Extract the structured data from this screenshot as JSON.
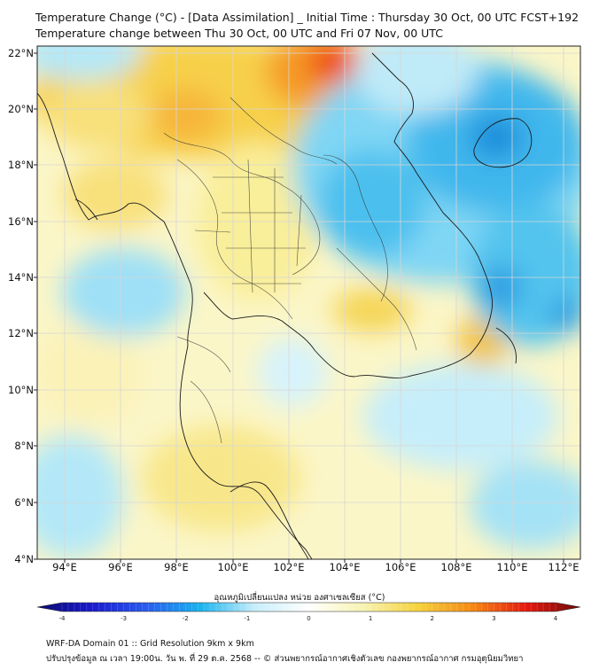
{
  "title_line1": "Temperature Change (°C) - [Data Assimilation] _ Initial Time : Thursday 30 Oct, 00 UTC FCST+192",
  "title_line2": "Temperature change between Thu 30 Oct, 00 UTC and Fri 07 Nov, 00 UTC",
  "lat_labels": [
    "22°N",
    "20°N",
    "18°N",
    "16°N",
    "14°N",
    "12°N",
    "10°N",
    "8°N",
    "6°N",
    "4°N"
  ],
  "lon_labels": [
    "94°E",
    "96°E",
    "98°E",
    "100°E",
    "102°E",
    "104°E",
    "106°E",
    "108°E",
    "110°E",
    "112°E"
  ],
  "colorbar": {
    "title": "อุณหภูมิเปลี่ยนแปลง หน่วย องศาเซลเซียส (°C)",
    "ticks": [
      "-4",
      "-3",
      "-2",
      "-1",
      "0",
      "1",
      "2",
      "3",
      "4"
    ],
    "min": -4,
    "max": 4,
    "colors": [
      "#0a0a6e",
      "#1a1acd",
      "#2a5cf0",
      "#19b4ee",
      "#c8eefa",
      "#ffffff",
      "#f8f3b2",
      "#f5d23e",
      "#f58a14",
      "#e61a0f",
      "#6e0a0a"
    ]
  },
  "footer_line1": "WRF-DA Domain 01 :: Grid Resolution 9km x 9km",
  "footer_line2": "ปรับปรุงข้อมูล ณ เวลา 19:00น. วัน พ. ที่ 29 ต.ค. 2568 -- © ส่วนพยากรณ์อากาศเชิงตัวเลข กองพยากรณ์อากาศ กรมอุตุนิยมวิทยา"
}
